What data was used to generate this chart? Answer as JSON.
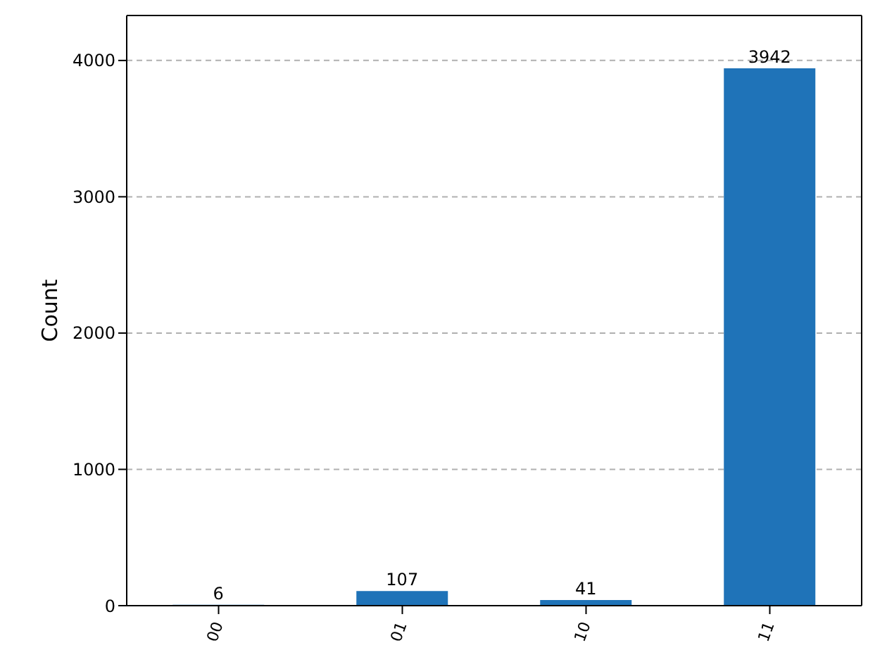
{
  "chart_data": {
    "type": "bar",
    "ylabel": "Count",
    "categories": [
      "00",
      "01",
      "10",
      "11"
    ],
    "values": [
      6,
      107,
      41,
      3942
    ],
    "color": "#1f73b8",
    "ylim": [
      0,
      4330
    ],
    "yticks": [
      0,
      1000,
      2000,
      3000,
      4000
    ],
    "grid": "y",
    "data_labels": true
  }
}
